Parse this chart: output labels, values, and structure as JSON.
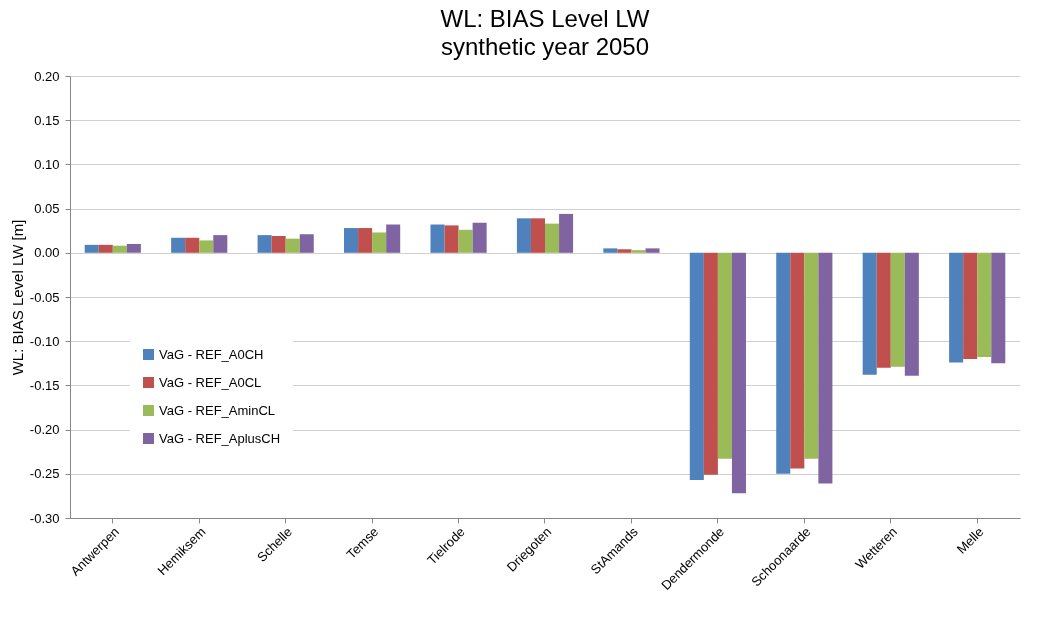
{
  "chart_data": {
    "type": "bar",
    "title": "WL: BIAS Level LW",
    "subtitle": "synthetic year 2050",
    "ylabel": "WL: BIAS Level LW [m]",
    "categories": [
      "Antwerpen",
      "Hemiksem",
      "Schelle",
      "Temse",
      "Tielrode",
      "Driegoten",
      "StAmands",
      "Dendermonde",
      "Schoonaarde",
      "Wetteren",
      "Melle"
    ],
    "series": [
      {
        "name": "VaG - REF_A0CH",
        "color": "#4f81bd",
        "values": [
          0.009,
          0.017,
          0.02,
          0.028,
          0.032,
          0.039,
          0.005,
          -0.257,
          -0.25,
          -0.138,
          -0.124
        ]
      },
      {
        "name": "VaG - REF_A0CL",
        "color": "#c0504d",
        "values": [
          0.009,
          0.017,
          0.019,
          0.028,
          0.031,
          0.039,
          0.004,
          -0.251,
          -0.244,
          -0.13,
          -0.12
        ]
      },
      {
        "name": "VaG - REF_AminCL",
        "color": "#9bbb59",
        "values": [
          0.008,
          0.014,
          0.016,
          0.023,
          0.026,
          0.033,
          0.003,
          -0.233,
          -0.233,
          -0.129,
          -0.118
        ]
      },
      {
        "name": "VaG - REF_AplusCH",
        "color": "#8064a2",
        "values": [
          0.01,
          0.02,
          0.021,
          0.032,
          0.034,
          0.044,
          0.005,
          -0.272,
          -0.261,
          -0.139,
          -0.125
        ]
      }
    ],
    "ylim": [
      -0.3,
      0.2
    ],
    "yticks": [
      {
        "value": -0.3,
        "label": "-0.30"
      },
      {
        "value": -0.25,
        "label": "-0.25"
      },
      {
        "value": -0.2,
        "label": "-0.20"
      },
      {
        "value": -0.15,
        "label": "-0.15"
      },
      {
        "value": -0.1,
        "label": "-0.10"
      },
      {
        "value": -0.05,
        "label": "-0.05"
      },
      {
        "value": 0,
        "label": "0.00"
      },
      {
        "value": 0.05,
        "label": "0.05"
      },
      {
        "value": 0.1,
        "label": "0.10"
      },
      {
        "value": 0.15,
        "label": "0.15"
      },
      {
        "value": 0.2,
        "label": "0.20"
      }
    ],
    "grid": "y",
    "legend": "bottom left"
  }
}
